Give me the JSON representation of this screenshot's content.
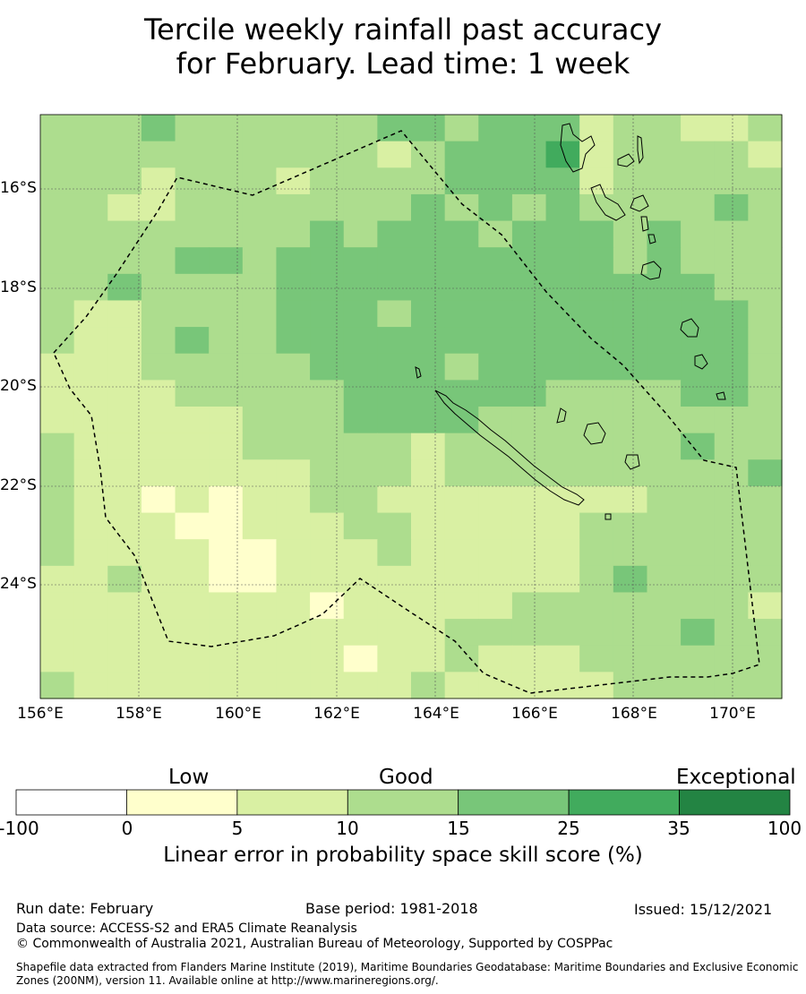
{
  "title": {
    "line1": "Tercile weekly rainfall past accuracy",
    "line2": "for February. Lead time: 1 week"
  },
  "map": {
    "lat_labels": [
      "16°S",
      "18°S",
      "20°S",
      "22°S",
      "24°S"
    ],
    "lon_labels": [
      "156°E",
      "158°E",
      "160°E",
      "162°E",
      "164°E",
      "166°E",
      "168°E",
      "170°E"
    ],
    "skill_grid": [
      [
        3,
        3,
        3,
        4,
        3,
        3,
        3,
        3,
        3,
        3,
        4,
        4,
        3,
        4,
        4,
        4,
        2,
        3,
        3,
        2,
        2,
        3
      ],
      [
        3,
        3,
        3,
        3,
        3,
        3,
        3,
        3,
        3,
        3,
        2,
        3,
        4,
        4,
        4,
        5,
        2,
        3,
        3,
        3,
        3,
        2
      ],
      [
        3,
        3,
        3,
        2,
        3,
        3,
        3,
        2,
        3,
        3,
        3,
        3,
        4,
        4,
        4,
        4,
        2,
        3,
        3,
        3,
        3,
        3
      ],
      [
        3,
        3,
        2,
        2,
        3,
        3,
        3,
        3,
        3,
        3,
        3,
        4,
        3,
        4,
        3,
        4,
        3,
        3,
        3,
        3,
        4,
        3
      ],
      [
        3,
        3,
        3,
        3,
        3,
        3,
        3,
        3,
        4,
        3,
        4,
        4,
        4,
        3,
        4,
        4,
        4,
        3,
        4,
        3,
        3,
        3
      ],
      [
        3,
        3,
        3,
        3,
        4,
        4,
        3,
        4,
        4,
        4,
        4,
        4,
        4,
        4,
        4,
        4,
        4,
        3,
        4,
        3,
        3,
        3
      ],
      [
        3,
        3,
        4,
        3,
        3,
        3,
        3,
        4,
        4,
        4,
        4,
        4,
        4,
        4,
        4,
        4,
        4,
        4,
        4,
        4,
        3,
        3
      ],
      [
        3,
        2,
        2,
        3,
        3,
        3,
        3,
        4,
        4,
        4,
        3,
        4,
        4,
        4,
        4,
        4,
        4,
        4,
        4,
        4,
        4,
        3
      ],
      [
        3,
        2,
        2,
        3,
        4,
        3,
        3,
        4,
        4,
        4,
        4,
        4,
        4,
        4,
        4,
        4,
        4,
        4,
        4,
        4,
        4,
        3
      ],
      [
        2,
        2,
        2,
        3,
        3,
        3,
        3,
        3,
        4,
        4,
        4,
        4,
        3,
        4,
        4,
        4,
        4,
        4,
        4,
        4,
        4,
        3
      ],
      [
        2,
        2,
        2,
        2,
        3,
        3,
        3,
        3,
        3,
        4,
        4,
        4,
        4,
        4,
        4,
        3,
        3,
        3,
        3,
        4,
        4,
        3
      ],
      [
        2,
        2,
        2,
        2,
        2,
        2,
        3,
        3,
        3,
        4,
        4,
        4,
        4,
        3,
        3,
        3,
        3,
        3,
        3,
        3,
        3,
        3
      ],
      [
        3,
        2,
        2,
        2,
        2,
        2,
        3,
        3,
        3,
        3,
        3,
        2,
        3,
        3,
        3,
        3,
        3,
        3,
        3,
        4,
        3,
        3
      ],
      [
        3,
        2,
        2,
        2,
        2,
        2,
        2,
        2,
        3,
        3,
        3,
        2,
        3,
        3,
        3,
        3,
        3,
        3,
        3,
        3,
        3,
        4
      ],
      [
        3,
        2,
        2,
        1,
        2,
        1,
        2,
        2,
        3,
        3,
        2,
        2,
        2,
        2,
        2,
        2,
        2,
        2,
        3,
        3,
        3,
        3
      ],
      [
        3,
        2,
        2,
        2,
        1,
        1,
        2,
        2,
        2,
        3,
        3,
        2,
        2,
        2,
        2,
        2,
        3,
        3,
        3,
        3,
        3,
        3
      ],
      [
        3,
        2,
        2,
        2,
        2,
        1,
        1,
        2,
        2,
        2,
        3,
        2,
        2,
        2,
        2,
        2,
        3,
        3,
        3,
        3,
        3,
        3
      ],
      [
        2,
        2,
        3,
        2,
        2,
        1,
        1,
        2,
        2,
        2,
        2,
        2,
        2,
        2,
        2,
        2,
        3,
        4,
        3,
        3,
        3,
        3
      ],
      [
        2,
        2,
        2,
        2,
        2,
        2,
        2,
        2,
        1,
        2,
        2,
        2,
        2,
        2,
        3,
        3,
        3,
        3,
        3,
        3,
        3,
        2
      ],
      [
        2,
        2,
        2,
        2,
        2,
        2,
        2,
        2,
        2,
        2,
        2,
        2,
        3,
        3,
        3,
        3,
        3,
        3,
        3,
        4,
        3,
        3
      ],
      [
        2,
        2,
        2,
        2,
        2,
        2,
        2,
        2,
        2,
        1,
        2,
        2,
        3,
        2,
        2,
        2,
        3,
        3,
        3,
        3,
        3,
        3
      ],
      [
        3,
        2,
        2,
        2,
        2,
        2,
        2,
        2,
        2,
        2,
        2,
        3,
        2,
        2,
        2,
        2,
        2,
        3,
        3,
        3,
        3,
        3
      ]
    ]
  },
  "colorbar": {
    "header_low": "Low",
    "header_good": "Good",
    "header_exceptional": "Exceptional",
    "ticks": [
      "-100",
      "0",
      "5",
      "10",
      "15",
      "25",
      "35",
      "100"
    ],
    "colors": [
      "#ffffff",
      "#ffffcc",
      "#d9f0a3",
      "#addd8e",
      "#78c679",
      "#41ab5d",
      "#238443"
    ],
    "label": "Linear error in probability space skill score (%)"
  },
  "footer": {
    "run_date": "Run date: February",
    "base_period": "Base period: 1981-2018",
    "issued": "Issued: 15/12/2021",
    "data_source": "Data source: ACCESS-S2 and ERA5 Climate Reanalysis",
    "copyright": "© Commonwealth of Australia 2021, Australian Bureau of Meteorology, Supported by COSPPac",
    "shapefile_line1": "Shapefile data extracted from Flanders Marine Institute (2019), Maritime Boundaries Geodatabase: Maritime Boundaries and Exclusive Economic",
    "shapefile_line2": "Zones (200NM), version 11. Available online at http://www.marineregions.org/."
  }
}
